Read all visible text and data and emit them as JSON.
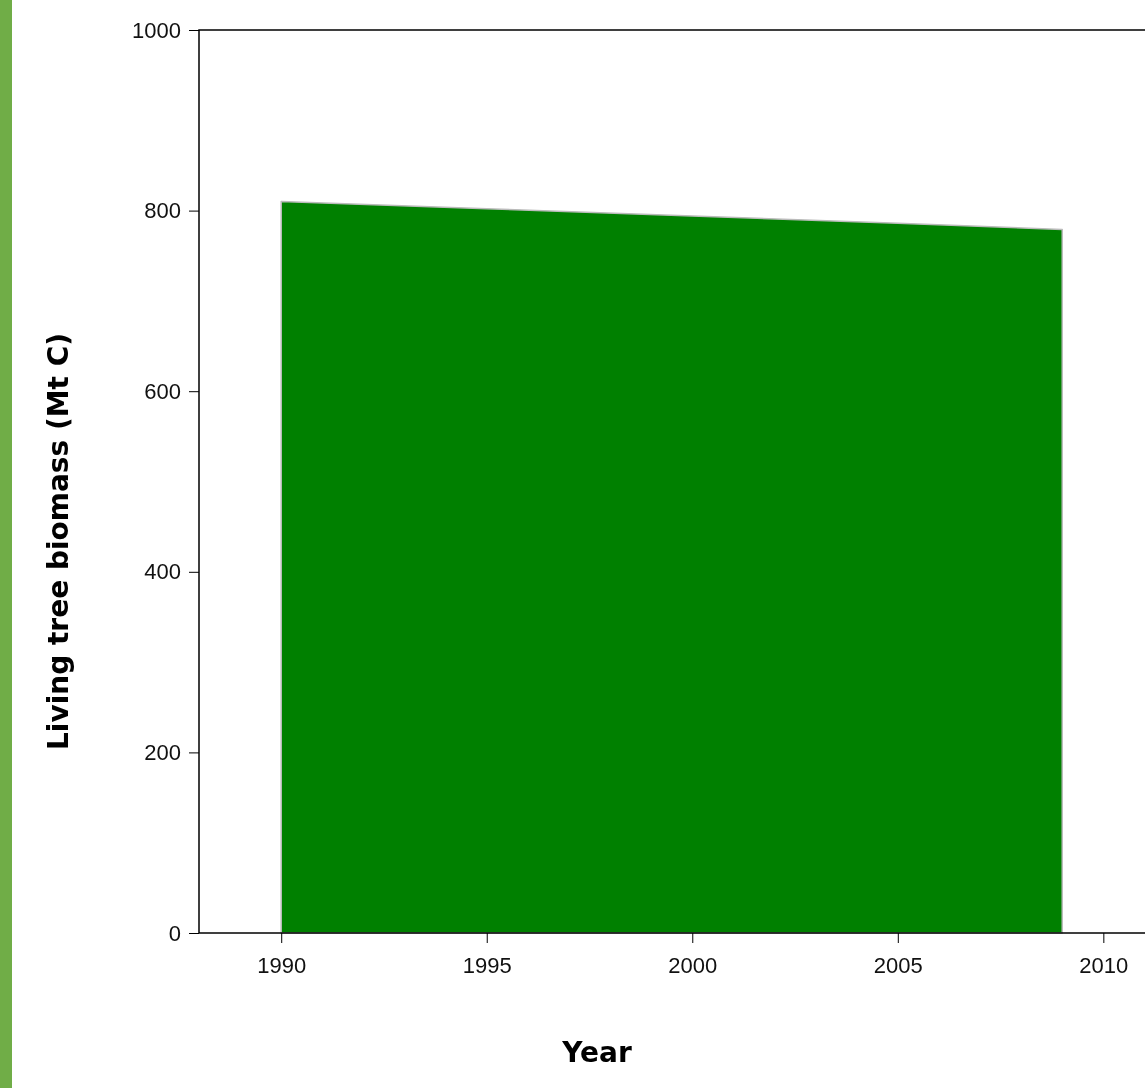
{
  "chart_data": {
    "type": "area",
    "xlabel": "Year",
    "ylabel": "Living tree biomass (Mt C)",
    "x": [
      1990,
      1995,
      2000,
      2005,
      2009
    ],
    "series": [
      {
        "color": "#008000",
        "values": [
          810,
          802,
          794,
          786,
          779
        ]
      }
    ],
    "xlim": [
      1988,
      2011.5
    ],
    "xticks": [
      1990,
      1995,
      2000,
      2005,
      2010
    ],
    "ylim": [
      0,
      1000
    ],
    "yticks": [
      0,
      200,
      400,
      600,
      800,
      1000
    ],
    "grid": false
  }
}
